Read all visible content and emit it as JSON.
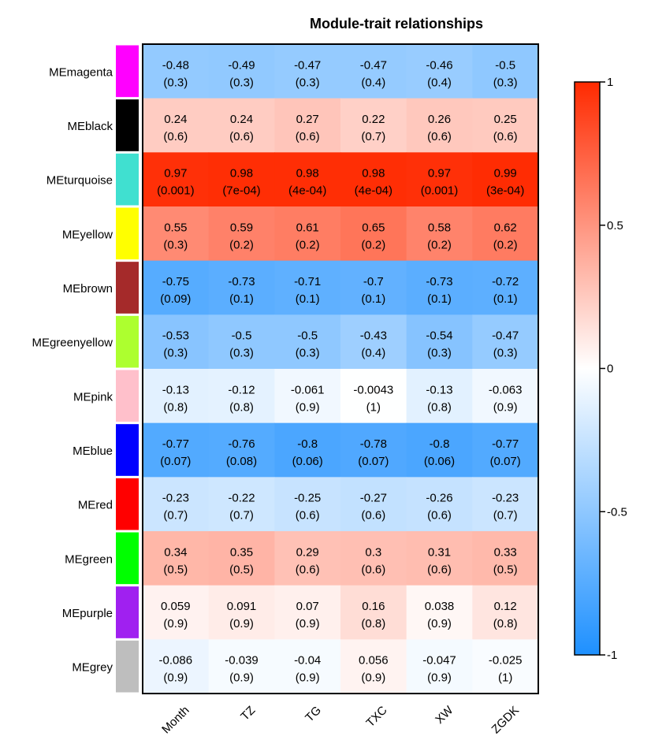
{
  "chart_data": {
    "type": "heatmap",
    "title": "Module-trait relationships",
    "columns": [
      "Month",
      "TZ",
      "TG",
      "TXC",
      "XW",
      "ZGDK"
    ],
    "rows": [
      {
        "label": "MEmagenta",
        "color": "#ff00ff",
        "r": [
          "-0.48",
          "-0.49",
          "-0.47",
          "-0.47",
          "-0.46",
          "-0.5"
        ],
        "p": [
          "(0.3)",
          "(0.3)",
          "(0.3)",
          "(0.4)",
          "(0.4)",
          "(0.3)"
        ]
      },
      {
        "label": "MEblack",
        "color": "#000000",
        "r": [
          "0.24",
          "0.24",
          "0.27",
          "0.22",
          "0.26",
          "0.25"
        ],
        "p": [
          "(0.6)",
          "(0.6)",
          "(0.6)",
          "(0.7)",
          "(0.6)",
          "(0.6)"
        ]
      },
      {
        "label": "MEturquoise",
        "color": "#40e0d0",
        "r": [
          "0.97",
          "0.98",
          "0.98",
          "0.98",
          "0.97",
          "0.99"
        ],
        "p": [
          "(0.001)",
          "(7e-04)",
          "(4e-04)",
          "(4e-04)",
          "(0.001)",
          "(3e-04)"
        ]
      },
      {
        "label": "MEyellow",
        "color": "#ffff00",
        "r": [
          "0.55",
          "0.59",
          "0.61",
          "0.65",
          "0.58",
          "0.62"
        ],
        "p": [
          "(0.3)",
          "(0.2)",
          "(0.2)",
          "(0.2)",
          "(0.2)",
          "(0.2)"
        ]
      },
      {
        "label": "MEbrown",
        "color": "#a52a2a",
        "r": [
          "-0.75",
          "-0.73",
          "-0.71",
          "-0.7",
          "-0.73",
          "-0.72"
        ],
        "p": [
          "(0.09)",
          "(0.1)",
          "(0.1)",
          "(0.1)",
          "(0.1)",
          "(0.1)"
        ]
      },
      {
        "label": "MEgreenyellow",
        "color": "#adff2f",
        "r": [
          "-0.53",
          "-0.5",
          "-0.5",
          "-0.43",
          "-0.54",
          "-0.47"
        ],
        "p": [
          "(0.3)",
          "(0.3)",
          "(0.3)",
          "(0.4)",
          "(0.3)",
          "(0.3)"
        ]
      },
      {
        "label": "MEpink",
        "color": "#ffc0cb",
        "r": [
          "-0.13",
          "-0.12",
          "-0.061",
          "-0.0043",
          "-0.13",
          "-0.063"
        ],
        "p": [
          "(0.8)",
          "(0.8)",
          "(0.9)",
          "(1)",
          "(0.8)",
          "(0.9)"
        ]
      },
      {
        "label": "MEblue",
        "color": "#0000ff",
        "r": [
          "-0.77",
          "-0.76",
          "-0.8",
          "-0.78",
          "-0.8",
          "-0.77"
        ],
        "p": [
          "(0.07)",
          "(0.08)",
          "(0.06)",
          "(0.07)",
          "(0.06)",
          "(0.07)"
        ]
      },
      {
        "label": "MEred",
        "color": "#ff0000",
        "r": [
          "-0.23",
          "-0.22",
          "-0.25",
          "-0.27",
          "-0.26",
          "-0.23"
        ],
        "p": [
          "(0.7)",
          "(0.7)",
          "(0.6)",
          "(0.6)",
          "(0.6)",
          "(0.7)"
        ]
      },
      {
        "label": "MEgreen",
        "color": "#00ff00",
        "r": [
          "0.34",
          "0.35",
          "0.29",
          "0.3",
          "0.31",
          "0.33"
        ],
        "p": [
          "(0.5)",
          "(0.5)",
          "(0.6)",
          "(0.6)",
          "(0.6)",
          "(0.5)"
        ]
      },
      {
        "label": "MEpurple",
        "color": "#a020f0",
        "r": [
          "0.059",
          "0.091",
          "0.07",
          "0.16",
          "0.038",
          "0.12"
        ],
        "p": [
          "(0.9)",
          "(0.9)",
          "(0.9)",
          "(0.8)",
          "(0.9)",
          "(0.8)"
        ]
      },
      {
        "label": "MEgrey",
        "color": "#bebebe",
        "r": [
          "-0.086",
          "-0.039",
          "-0.04",
          "0.056",
          "-0.047",
          "-0.025"
        ],
        "p": [
          "(0.9)",
          "(0.9)",
          "(0.9)",
          "(0.9)",
          "(0.9)",
          "(1)"
        ]
      }
    ],
    "color_scale": {
      "min": -1,
      "max": 1,
      "low_color": "#1e90ff",
      "mid_color": "#ffffff",
      "high_color": "#ff2a00",
      "ticks": [
        {
          "value": 1,
          "label": "1"
        },
        {
          "value": 0.5,
          "label": "0.5"
        },
        {
          "value": 0,
          "label": "0"
        },
        {
          "value": -0.5,
          "label": "-0.5"
        },
        {
          "value": -1,
          "label": "-1"
        }
      ]
    }
  }
}
